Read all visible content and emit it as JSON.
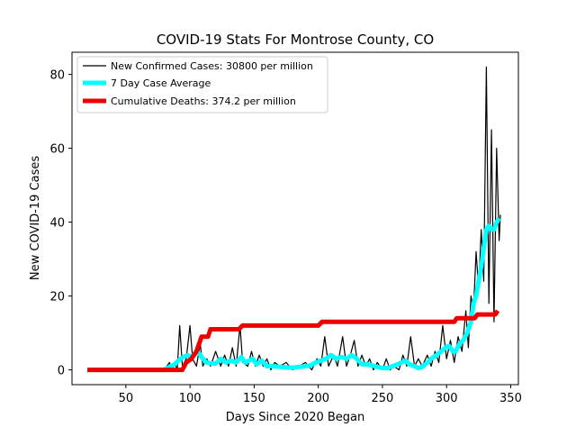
{
  "chart_data": {
    "type": "line",
    "title": "COVID-19 Stats For Montrose County, CO",
    "xlabel": "Days Since 2020 Began",
    "ylabel": "New COVID-19 Cases",
    "xlim": [
      8,
      356
    ],
    "ylim": [
      -4,
      86
    ],
    "xticks": [
      50,
      100,
      150,
      200,
      250,
      300,
      350
    ],
    "yticks": [
      0,
      20,
      40,
      60,
      80
    ],
    "grid": false,
    "legend_position": "top-left",
    "series": [
      {
        "name": "New Confirmed Cases: 30800 per million",
        "color": "#000000",
        "points": [
          [
            20,
            0
          ],
          [
            80,
            0
          ],
          [
            84,
            2
          ],
          [
            86,
            0
          ],
          [
            88,
            2
          ],
          [
            90,
            0
          ],
          [
            92,
            12
          ],
          [
            94,
            1
          ],
          [
            97,
            3
          ],
          [
            100,
            12
          ],
          [
            102,
            3
          ],
          [
            105,
            1
          ],
          [
            108,
            7
          ],
          [
            110,
            1
          ],
          [
            113,
            3
          ],
          [
            116,
            1
          ],
          [
            120,
            5
          ],
          [
            124,
            1
          ],
          [
            127,
            4
          ],
          [
            130,
            1
          ],
          [
            133,
            6
          ],
          [
            136,
            1
          ],
          [
            139,
            12
          ],
          [
            141,
            2
          ],
          [
            145,
            1
          ],
          [
            148,
            5
          ],
          [
            151,
            1
          ],
          [
            154,
            4
          ],
          [
            157,
            1
          ],
          [
            160,
            3
          ],
          [
            163,
            0
          ],
          [
            166,
            2
          ],
          [
            170,
            1
          ],
          [
            175,
            2
          ],
          [
            180,
            0
          ],
          [
            185,
            1
          ],
          [
            190,
            2
          ],
          [
            195,
            0
          ],
          [
            199,
            3
          ],
          [
            202,
            1
          ],
          [
            205,
            9
          ],
          [
            208,
            1
          ],
          [
            212,
            4
          ],
          [
            215,
            1
          ],
          [
            219,
            9
          ],
          [
            222,
            1
          ],
          [
            225,
            4
          ],
          [
            228,
            8
          ],
          [
            231,
            1
          ],
          [
            234,
            4
          ],
          [
            237,
            1
          ],
          [
            240,
            3
          ],
          [
            243,
            0
          ],
          [
            246,
            2
          ],
          [
            250,
            0
          ],
          [
            253,
            3
          ],
          [
            256,
            0
          ],
          [
            259,
            1
          ],
          [
            263,
            0
          ],
          [
            266,
            4
          ],
          [
            269,
            1
          ],
          [
            272,
            9
          ],
          [
            275,
            1
          ],
          [
            278,
            3
          ],
          [
            281,
            1
          ],
          [
            285,
            4
          ],
          [
            288,
            1
          ],
          [
            291,
            5
          ],
          [
            294,
            2
          ],
          [
            297,
            12
          ],
          [
            300,
            3
          ],
          [
            303,
            8
          ],
          [
            306,
            2
          ],
          [
            309,
            9
          ],
          [
            312,
            5
          ],
          [
            315,
            16
          ],
          [
            317,
            6
          ],
          [
            319,
            20
          ],
          [
            321,
            16
          ],
          [
            323,
            32
          ],
          [
            325,
            22
          ],
          [
            327,
            38
          ],
          [
            329,
            24
          ],
          [
            331,
            82
          ],
          [
            333,
            18
          ],
          [
            335,
            65
          ],
          [
            337,
            13
          ],
          [
            339,
            60
          ],
          [
            341,
            35
          ],
          [
            342,
            42
          ]
        ]
      },
      {
        "name": "7 Day Case Average",
        "color": "#00ffff",
        "points": [
          [
            20,
            0
          ],
          [
            80,
            0
          ],
          [
            85,
            1
          ],
          [
            88,
            1.5
          ],
          [
            92,
            2.8
          ],
          [
            95,
            3.5
          ],
          [
            98,
            4
          ],
          [
            101,
            3.5
          ],
          [
            104,
            4.5
          ],
          [
            107,
            4.5
          ],
          [
            110,
            3
          ],
          [
            113,
            2
          ],
          [
            116,
            1.8
          ],
          [
            120,
            1.7
          ],
          [
            124,
            3
          ],
          [
            128,
            2
          ],
          [
            132,
            2.5
          ],
          [
            136,
            2
          ],
          [
            140,
            3.5
          ],
          [
            143,
            2
          ],
          [
            146,
            2.5
          ],
          [
            149,
            3
          ],
          [
            152,
            1.5
          ],
          [
            156,
            2.5
          ],
          [
            160,
            1
          ],
          [
            164,
            1
          ],
          [
            170,
            0.8
          ],
          [
            175,
            0.7
          ],
          [
            180,
            0.6
          ],
          [
            185,
            0.8
          ],
          [
            190,
            1
          ],
          [
            194,
            1.2
          ],
          [
            198,
            2
          ],
          [
            202,
            2.5
          ],
          [
            206,
            3
          ],
          [
            210,
            4
          ],
          [
            214,
            3
          ],
          [
            218,
            3.5
          ],
          [
            222,
            3
          ],
          [
            226,
            4
          ],
          [
            230,
            3
          ],
          [
            234,
            1.5
          ],
          [
            238,
            1.5
          ],
          [
            242,
            1.2
          ],
          [
            246,
            0.8
          ],
          [
            250,
            0.5
          ],
          [
            254,
            0.5
          ],
          [
            258,
            1
          ],
          [
            262,
            1.5
          ],
          [
            265,
            2
          ],
          [
            268,
            2.5
          ],
          [
            271,
            1.5
          ],
          [
            275,
            1
          ],
          [
            278,
            0.5
          ],
          [
            281,
            0.8
          ],
          [
            285,
            2
          ],
          [
            288,
            3
          ],
          [
            292,
            4
          ],
          [
            296,
            5
          ],
          [
            299,
            6
          ],
          [
            302,
            6.5
          ],
          [
            305,
            5
          ],
          [
            307,
            5
          ],
          [
            310,
            7
          ],
          [
            313,
            8
          ],
          [
            316,
            10
          ],
          [
            319,
            13
          ],
          [
            321,
            18
          ],
          [
            323,
            20
          ],
          [
            325,
            24
          ],
          [
            327,
            28
          ],
          [
            329,
            33
          ],
          [
            331,
            38
          ],
          [
            333,
            39
          ],
          [
            335,
            38
          ],
          [
            337,
            38
          ],
          [
            339,
            40
          ],
          [
            341,
            41
          ]
        ]
      },
      {
        "name": "Cumulative Deaths: 374.2 per million",
        "color": "#ee0000",
        "points": [
          [
            20,
            0
          ],
          [
            94,
            0
          ],
          [
            97,
            2
          ],
          [
            101,
            3
          ],
          [
            105,
            5
          ],
          [
            109,
            9
          ],
          [
            114,
            9
          ],
          [
            116,
            11
          ],
          [
            138,
            11
          ],
          [
            141,
            12
          ],
          [
            200,
            12
          ],
          [
            203,
            13
          ],
          [
            306,
            13
          ],
          [
            308,
            14
          ],
          [
            322,
            14
          ],
          [
            324,
            15
          ],
          [
            338,
            15
          ],
          [
            340,
            16
          ]
        ]
      }
    ]
  }
}
